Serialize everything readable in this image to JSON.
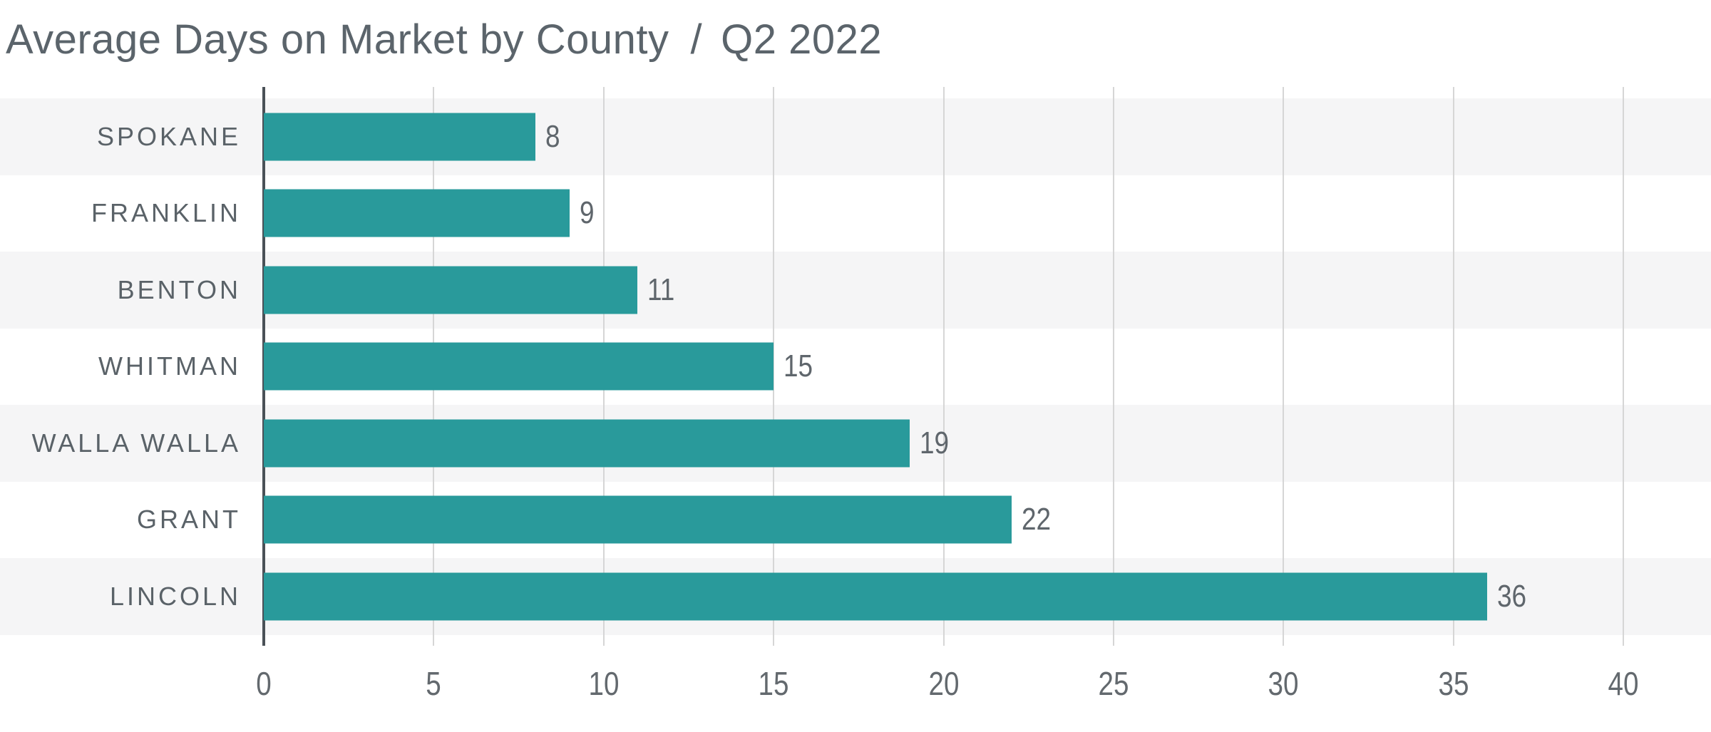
{
  "title": {
    "main": "Average Days on Market by County",
    "separator": "/",
    "period": "Q2 2022"
  },
  "chart_data": {
    "type": "bar",
    "orientation": "horizontal",
    "title": "Average Days on Market by County / Q2 2022",
    "categories": [
      "SPOKANE",
      "FRANKLIN",
      "BENTON",
      "WHITMAN",
      "WALLA WALLA",
      "GRANT",
      "LINCOLN"
    ],
    "values": [
      8,
      9,
      11,
      15,
      19,
      22,
      36
    ],
    "xlabel": "",
    "ylabel": "",
    "xlim": [
      0,
      40
    ],
    "xticks": [
      0,
      5,
      10,
      15,
      20,
      25,
      30,
      35,
      40
    ],
    "grid": true,
    "legend": "none",
    "colors": {
      "bar": "#299a9b",
      "row_stripe": "#f5f5f6",
      "gridline": "#d6d6d6",
      "axis_line": "#4a5157",
      "category_label": "#5a6268",
      "value_label": "#5f666c",
      "tick_label": "#63696e",
      "title": "#5b646b"
    }
  }
}
